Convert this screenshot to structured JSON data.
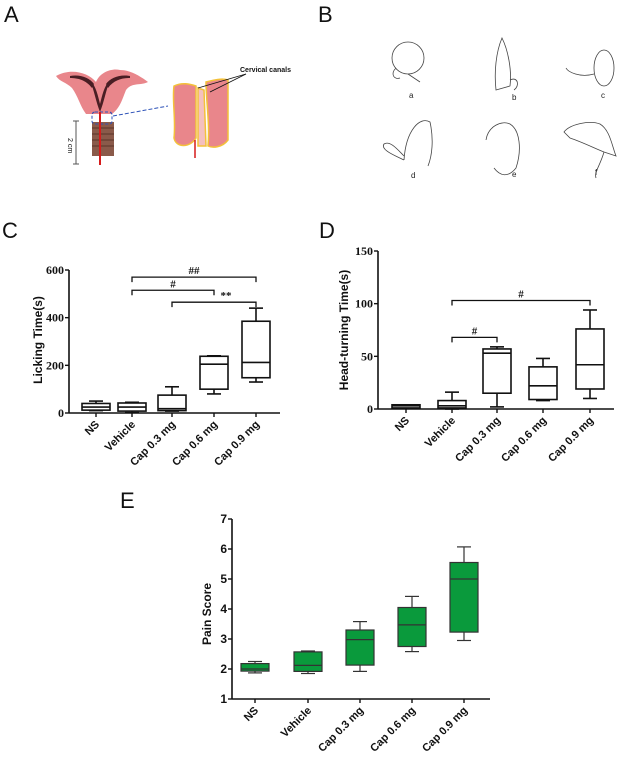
{
  "panels": {
    "A": {
      "label": "A",
      "annotation": "Cervical canals",
      "scale_label": "2 cm"
    },
    "B": {
      "label": "B",
      "rat_labels": [
        "a",
        "b",
        "c",
        "d",
        "e",
        "f"
      ]
    },
    "C": {
      "label": "C"
    },
    "D": {
      "label": "D"
    },
    "E": {
      "label": "E"
    }
  },
  "colors": {
    "box_fill_E": "#0a9a3c",
    "uterus_pink": "#e9868b",
    "outline_yellow": "#f3c13a",
    "probe_red": "#d61b1b",
    "dash_blue": "#2d52b8"
  },
  "chart_data": [
    {
      "id": "C",
      "type": "box",
      "title": "",
      "xlabel": "",
      "ylabel": "Licking Time(s)",
      "ylim": [
        0,
        600
      ],
      "yticks": [
        0,
        200,
        400,
        600
      ],
      "categories": [
        "NS",
        "Vehicle",
        "Cap 0.3 mg",
        "Cap 0.6 mg",
        "Cap 0.9 mg"
      ],
      "boxes": [
        {
          "min": 10,
          "q1": 12,
          "median": 25,
          "q3": 40,
          "max": 50
        },
        {
          "min": 2,
          "q1": 8,
          "median": 25,
          "q3": 42,
          "max": 45
        },
        {
          "min": 8,
          "q1": 10,
          "median": 18,
          "q3": 75,
          "max": 110
        },
        {
          "min": 80,
          "q1": 100,
          "median": 205,
          "q3": 238,
          "max": 240
        },
        {
          "min": 130,
          "q1": 148,
          "median": 212,
          "q3": 385,
          "max": 440
        }
      ],
      "significance": [
        {
          "from": 1,
          "to": 4,
          "label": "##",
          "y": 570
        },
        {
          "from": 1,
          "to": 3,
          "label": "#",
          "y": 515
        },
        {
          "from": 2,
          "to": 4,
          "label": "**",
          "y": 465
        }
      ],
      "fill": "#ffffff",
      "grid": false
    },
    {
      "id": "D",
      "type": "box",
      "title": "",
      "xlabel": "",
      "ylabel": "Head-turning Time(s)",
      "ylim": [
        0,
        150
      ],
      "yticks": [
        0,
        50,
        100,
        150
      ],
      "categories": [
        "NS",
        "Vehicle",
        "Cap 0.3 mg",
        "Cap 0.6 mg",
        "Cap 0.9 mg"
      ],
      "boxes": [
        {
          "min": 1,
          "q1": 1,
          "median": 3,
          "q3": 4,
          "max": 4
        },
        {
          "min": 0,
          "q1": 1,
          "median": 3,
          "q3": 8,
          "max": 16
        },
        {
          "min": 2,
          "q1": 15,
          "median": 53,
          "q3": 57,
          "max": 59
        },
        {
          "min": 8,
          "q1": 9,
          "median": 22,
          "q3": 40,
          "max": 48
        },
        {
          "min": 10,
          "q1": 19,
          "median": 42,
          "q3": 76,
          "max": 94
        }
      ],
      "significance": [
        {
          "from": 1,
          "to": 4,
          "label": "#",
          "y": 103
        },
        {
          "from": 1,
          "to": 2,
          "label": "#",
          "y": 68
        }
      ],
      "fill": "#ffffff",
      "grid": false
    },
    {
      "id": "E",
      "type": "box",
      "title": "",
      "xlabel": "",
      "ylabel": "Pain Score",
      "ylim": [
        1,
        7
      ],
      "yticks": [
        1,
        2,
        3,
        4,
        5,
        6,
        7
      ],
      "categories": [
        "NS",
        "Vehicle",
        "Cap 0.3 mg",
        "Cap 0.6 mg",
        "Cap 0.9 mg"
      ],
      "boxes": [
        {
          "min": 1.87,
          "q1": 1.93,
          "median": 2.0,
          "q3": 2.18,
          "max": 2.25
        },
        {
          "min": 1.85,
          "q1": 1.92,
          "median": 2.12,
          "q3": 2.57,
          "max": 2.6
        },
        {
          "min": 1.92,
          "q1": 2.13,
          "median": 2.98,
          "q3": 3.3,
          "max": 3.58
        },
        {
          "min": 2.58,
          "q1": 2.75,
          "median": 3.47,
          "q3": 4.05,
          "max": 4.42
        },
        {
          "min": 2.95,
          "q1": 3.23,
          "median": 5.0,
          "q3": 5.55,
          "max": 6.07
        }
      ],
      "significance": [],
      "fill": "#0a9a3c",
      "grid": false
    }
  ]
}
